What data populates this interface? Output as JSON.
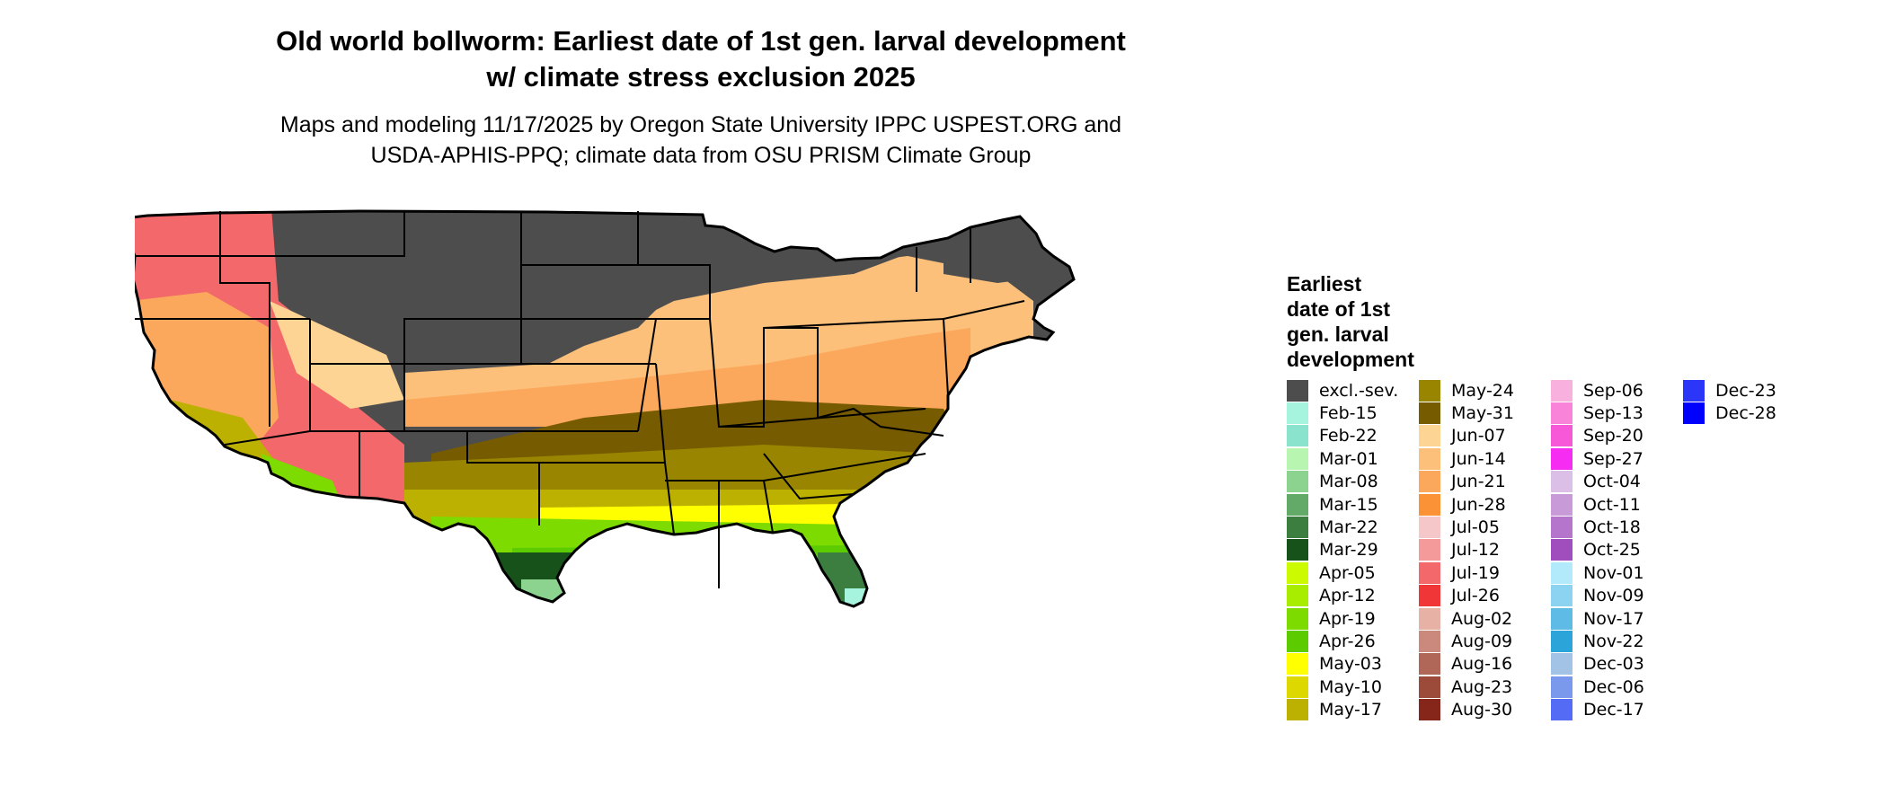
{
  "title": {
    "line1": "Old world bollworm: Earliest date of 1st gen. larval development",
    "line2": "w/ climate stress exclusion 2025"
  },
  "subtitle": {
    "line1": "Maps and modeling 11/17/2025 by Oregon State University IPPC USPEST.ORG and",
    "line2": "USDA-APHIS-PPQ; climate data from OSU PRISM Climate Group"
  },
  "legend": {
    "title_lines": [
      "Earliest",
      "date of 1st",
      "gen. larval",
      "development"
    ],
    "columns": [
      [
        {
          "label": "excl.-sev.",
          "color": "#4d4d4d"
        },
        {
          "label": "Feb-15",
          "color": "#a6f3de"
        },
        {
          "label": "Feb-22",
          "color": "#8ae3cc"
        },
        {
          "label": "Mar-01",
          "color": "#b7f5b0"
        },
        {
          "label": "Mar-08",
          "color": "#8bd38e"
        },
        {
          "label": "Mar-15",
          "color": "#63aa69"
        },
        {
          "label": "Mar-22",
          "color": "#3c7d40"
        },
        {
          "label": "Mar-29",
          "color": "#17521a"
        },
        {
          "label": "Apr-05",
          "color": "#ccfa00"
        },
        {
          "label": "Apr-12",
          "color": "#a8ec00"
        },
        {
          "label": "Apr-19",
          "color": "#7ddb00"
        },
        {
          "label": "Apr-26",
          "color": "#5ccc00"
        },
        {
          "label": "May-03",
          "color": "#ffff00"
        },
        {
          "label": "May-10",
          "color": "#dcd800"
        },
        {
          "label": "May-17",
          "color": "#bcb100"
        }
      ],
      [
        {
          "label": "May-24",
          "color": "#9a8500"
        },
        {
          "label": "May-31",
          "color": "#765b00"
        },
        {
          "label": "Jun-07",
          "color": "#fdd493"
        },
        {
          "label": "Jun-14",
          "color": "#fcc07b"
        },
        {
          "label": "Jun-21",
          "color": "#fca85c"
        },
        {
          "label": "Jun-28",
          "color": "#fb9336"
        },
        {
          "label": "Jul-05",
          "color": "#f6c7c9"
        },
        {
          "label": "Jul-12",
          "color": "#f49a9b"
        },
        {
          "label": "Jul-19",
          "color": "#f3686a"
        },
        {
          "label": "Jul-26",
          "color": "#f03636"
        },
        {
          "label": "Aug-02",
          "color": "#e7b1a6"
        },
        {
          "label": "Aug-09",
          "color": "#ca897c"
        },
        {
          "label": "Aug-16",
          "color": "#b06757"
        },
        {
          "label": "Aug-23",
          "color": "#9c4a39"
        },
        {
          "label": "Aug-30",
          "color": "#86261a"
        }
      ],
      [
        {
          "label": "Sep-06",
          "color": "#f8b1de"
        },
        {
          "label": "Sep-13",
          "color": "#f883d8"
        },
        {
          "label": "Sep-20",
          "color": "#f758d8"
        },
        {
          "label": "Sep-27",
          "color": "#f62cf2"
        },
        {
          "label": "Oct-04",
          "color": "#dcbfe6"
        },
        {
          "label": "Oct-11",
          "color": "#c89ad8"
        },
        {
          "label": "Oct-18",
          "color": "#b675cc"
        },
        {
          "label": "Oct-25",
          "color": "#a04ebd"
        },
        {
          "label": "Nov-01",
          "color": "#b2e9fb"
        },
        {
          "label": "Nov-09",
          "color": "#8bd3f1"
        },
        {
          "label": "Nov-17",
          "color": "#5dbbe6"
        },
        {
          "label": "Nov-22",
          "color": "#2ba5d9"
        },
        {
          "label": "Dec-03",
          "color": "#a2c3e6"
        },
        {
          "label": "Dec-06",
          "color": "#7b99ec"
        },
        {
          "label": "Dec-17",
          "color": "#536bf5"
        }
      ],
      [
        {
          "label": "Dec-23",
          "color": "#2b36f9"
        },
        {
          "label": "Dec-28",
          "color": "#0000ff"
        }
      ]
    ]
  }
}
